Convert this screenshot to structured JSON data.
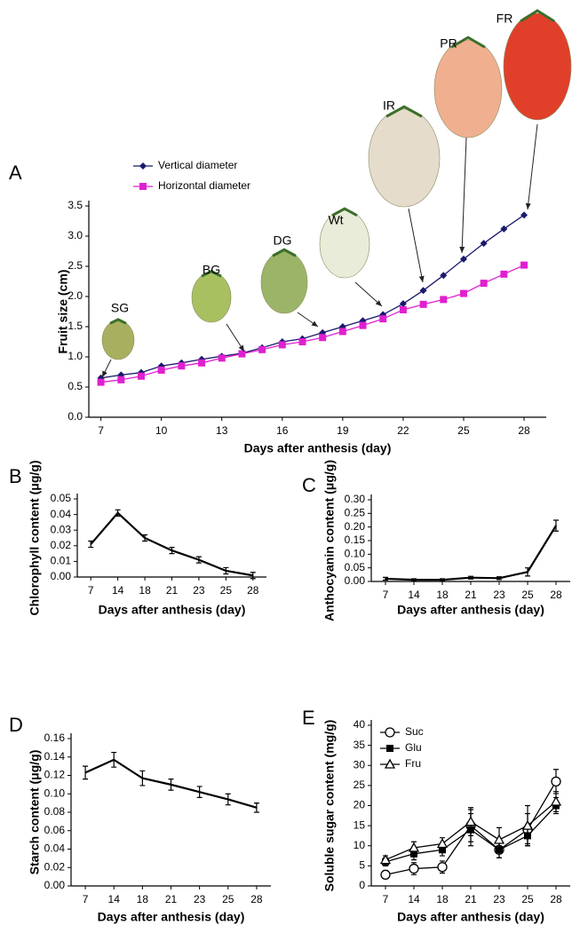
{
  "chart_data": [
    {
      "type": "line",
      "panel": "A",
      "x": [
        7,
        8,
        9,
        10,
        11,
        12,
        13,
        14,
        15,
        16,
        17,
        18,
        19,
        20,
        21,
        22,
        23,
        24,
        25,
        26,
        27,
        28
      ],
      "series": [
        {
          "name": "Vertical diameter",
          "color": "#1a1a6e",
          "marker": "diamond",
          "values": [
            0.65,
            0.7,
            0.74,
            0.85,
            0.9,
            0.96,
            1.01,
            1.06,
            1.15,
            1.25,
            1.3,
            1.4,
            1.5,
            1.6,
            1.7,
            1.88,
            2.1,
            2.35,
            2.62,
            2.88,
            3.12,
            3.35
          ]
        },
        {
          "name": "Horizontal diameter",
          "color": "#e020d0",
          "marker": "square",
          "values": [
            0.58,
            0.62,
            0.68,
            0.78,
            0.85,
            0.9,
            0.98,
            1.05,
            1.12,
            1.2,
            1.25,
            1.32,
            1.42,
            1.52,
            1.63,
            1.78,
            1.87,
            1.95,
            2.05,
            2.22,
            2.37,
            2.52
          ]
        }
      ],
      "xlim": [
        6.4,
        29.1
      ],
      "xticks": [
        7,
        10,
        13,
        16,
        19,
        22,
        25,
        28
      ],
      "ylim": [
        0,
        3.5
      ],
      "yticks": [
        {
          "value": 0,
          "label": "0.0"
        },
        0.5,
        {
          "value": 1,
          "label": "1.0"
        },
        1.5,
        {
          "value": 2,
          "label": "2.0"
        },
        2.5,
        {
          "value": 3,
          "label": "3.0"
        },
        3.5
      ],
      "x_label": "Days after anthesis (day)",
      "y_label": "Fruit size (cm)",
      "annotations": [
        "SG",
        "BG",
        "DG",
        "Wt",
        "IR",
        "PR",
        "FR"
      ]
    },
    {
      "type": "line",
      "panel": "B",
      "categories": [
        "7",
        "14",
        "18",
        "21",
        "23",
        "25",
        "28"
      ],
      "series": [
        {
          "color": "#000",
          "marker": "none",
          "values": [
            0.021,
            0.041,
            0.025,
            0.017,
            0.011,
            0.004,
            0.001
          ],
          "errors": [
            0.002,
            0.002,
            0.002,
            0.002,
            0.002,
            0.002,
            0.002
          ]
        }
      ],
      "ylim": [
        0,
        0.05
      ],
      "yticks": [
        {
          "value": 0,
          "label": "0.00"
        },
        0.01,
        0.02,
        0.03,
        0.04,
        0.05
      ],
      "x_label": "Days after anthesis (day)",
      "y_label": "Chlorophyll content (μg/g)"
    },
    {
      "type": "line",
      "panel": "C",
      "categories": [
        "7",
        "14",
        "18",
        "21",
        "23",
        "25",
        "28"
      ],
      "series": [
        {
          "color": "#000",
          "marker": "none",
          "values": [
            0.01,
            0.006,
            0.006,
            0.014,
            0.012,
            0.035,
            0.205
          ],
          "errors": [
            0.005,
            0.004,
            0.004,
            0.005,
            0.005,
            0.015,
            0.02
          ]
        }
      ],
      "ylim": [
        0,
        0.3
      ],
      "yticks": [
        {
          "value": 0,
          "label": "0.00"
        },
        0.05,
        {
          "value": 0.1,
          "label": "0.10"
        },
        0.15,
        {
          "value": 0.2,
          "label": "0.20"
        },
        0.25,
        {
          "value": 0.3,
          "label": "0.30"
        }
      ],
      "x_label": "Days after anthesis (day)",
      "y_label": "Anthocyanin content (μg/g)"
    },
    {
      "type": "line",
      "panel": "D",
      "categories": [
        "7",
        "14",
        "18",
        "21",
        "23",
        "25",
        "28"
      ],
      "series": [
        {
          "color": "#000",
          "marker": "none",
          "values": [
            0.123,
            0.137,
            0.117,
            0.11,
            0.102,
            0.094,
            0.085
          ],
          "errors": [
            0.007,
            0.008,
            0.008,
            0.006,
            0.006,
            0.006,
            0.005
          ]
        }
      ],
      "ylim": [
        0,
        0.16
      ],
      "yticks": [
        {
          "value": 0,
          "label": "0.00"
        },
        0.02,
        0.04,
        0.06,
        0.08,
        {
          "value": 0.1,
          "label": "0.10"
        },
        0.12,
        0.14,
        0.16
      ],
      "x_label": "Days after anthesis (day)",
      "y_label": "Starch content (μg/g)"
    },
    {
      "type": "line",
      "panel": "E",
      "categories": [
        "7",
        "14",
        "18",
        "21",
        "23",
        "25",
        "28"
      ],
      "series": [
        {
          "name": "Suc",
          "color": "#000",
          "marker": "open-circle",
          "values": [
            2.8,
            4.3,
            4.7,
            15,
            9,
            14,
            26
          ],
          "errors": [
            1,
            1.5,
            1.5,
            4,
            2,
            4,
            3
          ]
        },
        {
          "name": "Glu",
          "color": "#000",
          "marker": "square",
          "values": [
            6,
            8,
            9,
            14,
            9,
            12.5,
            20
          ],
          "errors": [
            1,
            1.5,
            1.5,
            4,
            2,
            2,
            2
          ]
        },
        {
          "name": "Fru",
          "color": "#000",
          "marker": "open-triangle",
          "values": [
            6.5,
            9.5,
            10.5,
            16,
            11.5,
            15,
            21
          ],
          "errors": [
            1,
            1.5,
            1.5,
            3.5,
            3,
            5,
            2.5
          ]
        }
      ],
      "ylim": [
        0,
        40
      ],
      "yticks": [
        0,
        5,
        10,
        15,
        20,
        25,
        30,
        35,
        40
      ],
      "x_label": "Days after anthesis (day)",
      "y_label": "Soluble sugar content (mg/g)"
    }
  ]
}
